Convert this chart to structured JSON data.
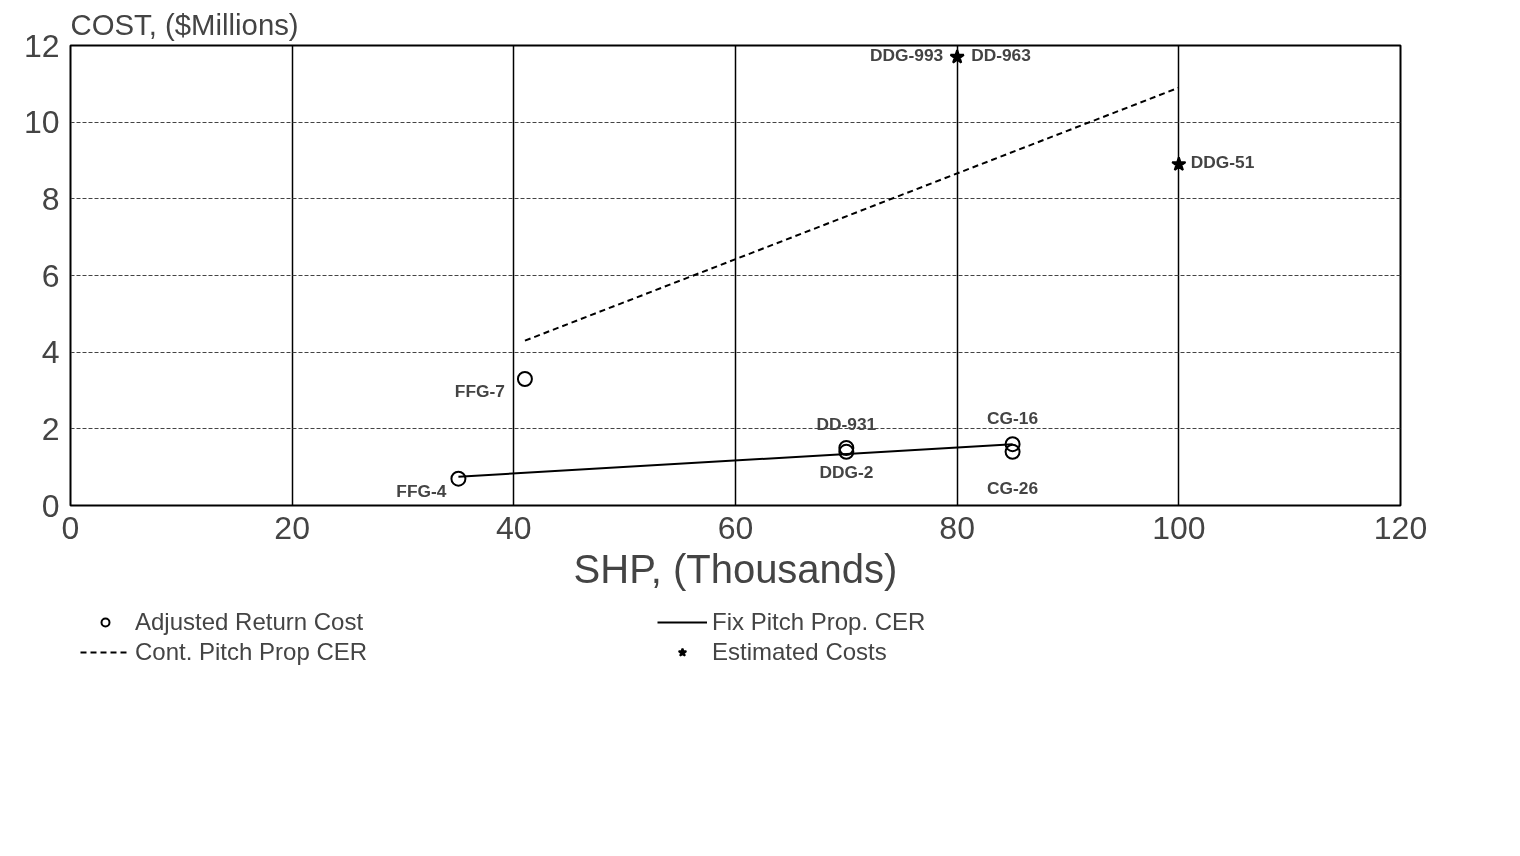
{
  "chart_data": {
    "type": "scatter",
    "ylabel": "COST, ($Millions)",
    "xlabel": "SHP, (Thousands)",
    "xlim": [
      0,
      120
    ],
    "xticks": [
      0,
      20,
      40,
      60,
      80,
      100,
      120
    ],
    "ylim": [
      0,
      12
    ],
    "yticks": [
      0,
      2,
      4,
      6,
      8,
      10,
      12
    ],
    "grid": true,
    "legend": "bottom",
    "series": [
      {
        "name": "Adjusted Return Cost",
        "type": "scatter",
        "marker": "circle",
        "color": "#000000",
        "x": [
          35,
          41,
          70,
          70,
          85,
          85
        ],
        "values": [
          0.7,
          3.3,
          1.5,
          1.4,
          1.6,
          1.4
        ]
      },
      {
        "name": "Fix Pitch Prop. CER",
        "type": "line",
        "line_style": "solid",
        "color": "#000000",
        "x": [
          35,
          85
        ],
        "values": [
          0.75,
          1.6
        ]
      },
      {
        "name": "Cont. Pitch Prop CER",
        "type": "line",
        "line_style": "dashed",
        "color": "#000000",
        "x": [
          41,
          100
        ],
        "values": [
          4.3,
          10.9
        ]
      },
      {
        "name": "Estimated Costs",
        "type": "scatter",
        "marker": "star",
        "color": "#000000",
        "x": [
          80,
          100
        ],
        "values": [
          11.7,
          8.9
        ]
      }
    ],
    "annotations": [
      {
        "text": "FFG-4",
        "x": 35,
        "y": 0.7
      },
      {
        "text": "FFG-7",
        "x": 41,
        "y": 3.3
      },
      {
        "text": "DD-931",
        "x": 70,
        "y": 1.5
      },
      {
        "text": "DDG-2",
        "x": 70,
        "y": 1.4
      },
      {
        "text": "CG-16",
        "x": 85,
        "y": 1.6
      },
      {
        "text": "CG-26",
        "x": 85,
        "y": 1.4
      },
      {
        "text": "DDG-993",
        "x": 80,
        "y": 11.7
      },
      {
        "text": "DD-963",
        "x": 80,
        "y": 11.7
      },
      {
        "text": "DDG-51",
        "x": 100,
        "y": 8.9
      }
    ]
  }
}
